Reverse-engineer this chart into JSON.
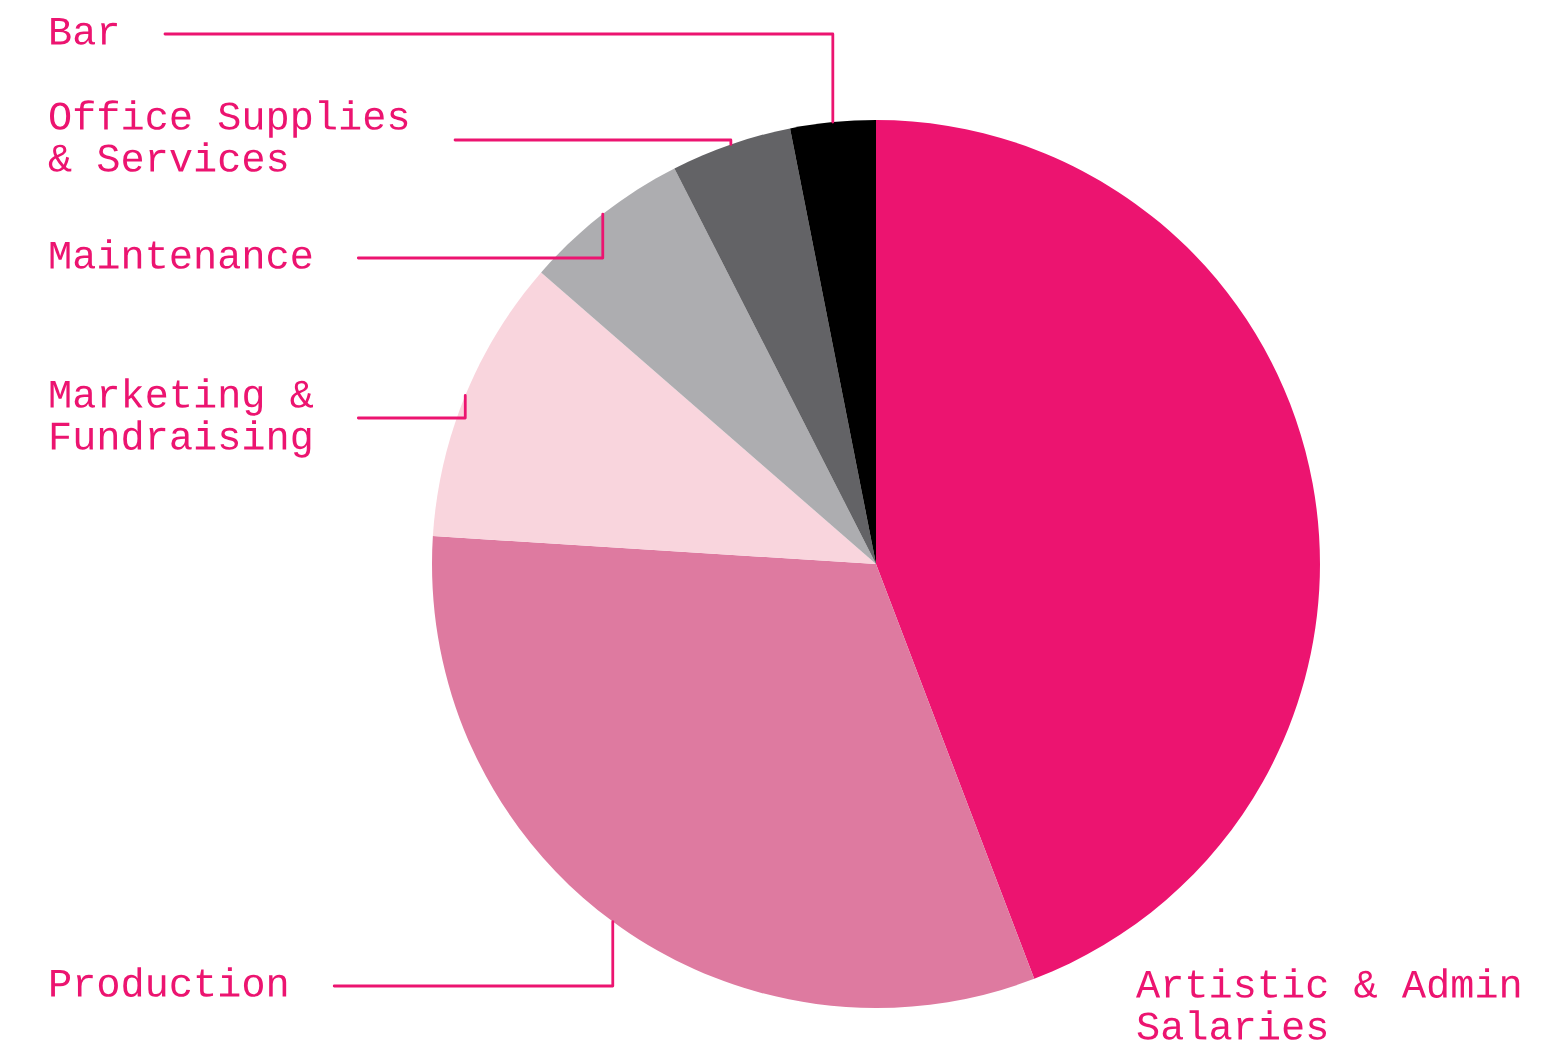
{
  "chart_data": {
    "type": "pie",
    "categories": [
      "Artistic & Admin\nSalaries",
      "Production",
      "Marketing &\nFundraising",
      "Maintenance",
      "Office Supplies\n& Services",
      "Bar"
    ],
    "values": [
      44.2,
      31.8,
      10.4,
      6.1,
      4.4,
      3.1
    ],
    "colors": [
      "#ec1470",
      "#de7aa0",
      "#f9d5dd",
      "#adadb0",
      "#636366",
      "#000000"
    ]
  }
}
